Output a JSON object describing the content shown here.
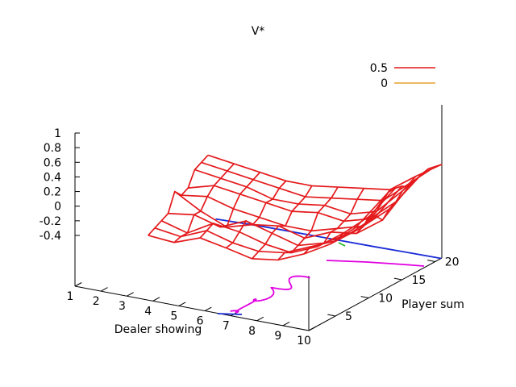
{
  "chart_data": {
    "type": "surface",
    "title": "V*",
    "xlabel": "Dealer showing",
    "ylabel": "Player sum",
    "zlabel": "",
    "x": [
      1,
      2,
      3,
      4,
      5,
      6,
      7,
      8,
      9,
      10
    ],
    "y": [
      12,
      13,
      14,
      15,
      16,
      17,
      18,
      19,
      20,
      21
    ],
    "xticks": [
      "1",
      "2",
      "3",
      "4",
      "5",
      "6",
      "7",
      "8",
      "9",
      "10"
    ],
    "yticks": [
      "5",
      "10",
      "15",
      "20"
    ],
    "zticks": [
      "-0.4",
      "-0.2",
      "0",
      "0.2",
      "0.4",
      "0.6",
      "0.8",
      "1"
    ],
    "xlim": [
      1,
      10
    ],
    "ylim": [
      1,
      21
    ],
    "zlim": [
      -0.4,
      1
    ],
    "grid": false,
    "legend_position": "top-right",
    "series": [
      {
        "name": "0.5",
        "kind": "contour",
        "color": "#e41a1c"
      },
      {
        "name": "0",
        "kind": "contour",
        "color": "#e8a030"
      }
    ],
    "surface_color": "#e41a1c",
    "z": [
      [
        -0.25,
        -0.28,
        -0.15,
        -0.22,
        -0.3,
        -0.25,
        -0.1,
        0.1,
        0.4,
        0.85
      ],
      [
        -0.2,
        -0.25,
        -0.1,
        -0.2,
        -0.25,
        -0.2,
        -0.05,
        0.1,
        0.35,
        0.9
      ],
      [
        -0.15,
        -0.25,
        -0.05,
        -0.1,
        -0.2,
        -0.25,
        -0.1,
        0.15,
        0.45,
        0.9
      ],
      [
        -0.1,
        -0.05,
        -0.15,
        0.0,
        -0.1,
        -0.2,
        -0.1,
        0.1,
        0.4,
        0.88
      ],
      [
        0.15,
        -0.05,
        -0.2,
        -0.1,
        -0.05,
        -0.15,
        0.0,
        0.05,
        0.3,
        0.82
      ],
      [
        0.05,
        0.1,
        0.0,
        -0.05,
        -0.1,
        -0.1,
        0.0,
        0.1,
        0.4,
        0.85
      ],
      [
        0.1,
        0.2,
        0.15,
        0.1,
        0.05,
        0.1,
        0.05,
        0.15,
        0.45,
        0.9
      ],
      [
        0.3,
        0.25,
        0.2,
        0.1,
        0.1,
        0.15,
        0.1,
        0.2,
        0.55,
        0.92
      ],
      [
        0.35,
        0.3,
        0.25,
        0.2,
        0.15,
        0.2,
        0.25,
        0.3,
        0.6,
        0.9
      ],
      [
        0.4,
        0.35,
        0.3,
        0.25,
        0.25,
        0.3,
        0.35,
        0.4,
        0.65,
        0.88
      ]
    ]
  }
}
